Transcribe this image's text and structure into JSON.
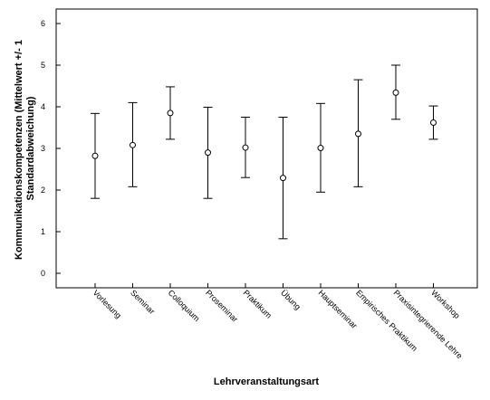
{
  "chart_data": {
    "type": "errorbar",
    "title": "",
    "xlabel": "Lehrveranstaltungsart",
    "ylabel_line1": "Kommunikationskompetenzen (Mittelwert +/- 1",
    "ylabel_line2": "Standardabweichung)",
    "ylim": [
      0,
      6
    ],
    "yticks": [
      "0",
      "1",
      "2",
      "3",
      "4",
      "5",
      "6"
    ],
    "grid": false,
    "categories": [
      "Vorlesung",
      "Seminar",
      "Colloquium",
      "Proseminar",
      "Praktikum",
      "Übung",
      "Hauptseminar",
      "Empirisches Praktikum",
      "Praxisintegrierende Lehre",
      "Workshop"
    ],
    "series": [
      {
        "mean": [
          2.82,
          3.08,
          3.85,
          2.9,
          3.02,
          2.29,
          3.01,
          3.35,
          4.34,
          3.62
        ],
        "lower": [
          1.8,
          2.08,
          3.22,
          1.8,
          2.3,
          0.83,
          1.95,
          2.08,
          3.7,
          3.22
        ],
        "upper": [
          3.84,
          4.1,
          4.48,
          3.99,
          3.75,
          3.75,
          4.08,
          4.65,
          5.0,
          4.02
        ]
      }
    ]
  }
}
